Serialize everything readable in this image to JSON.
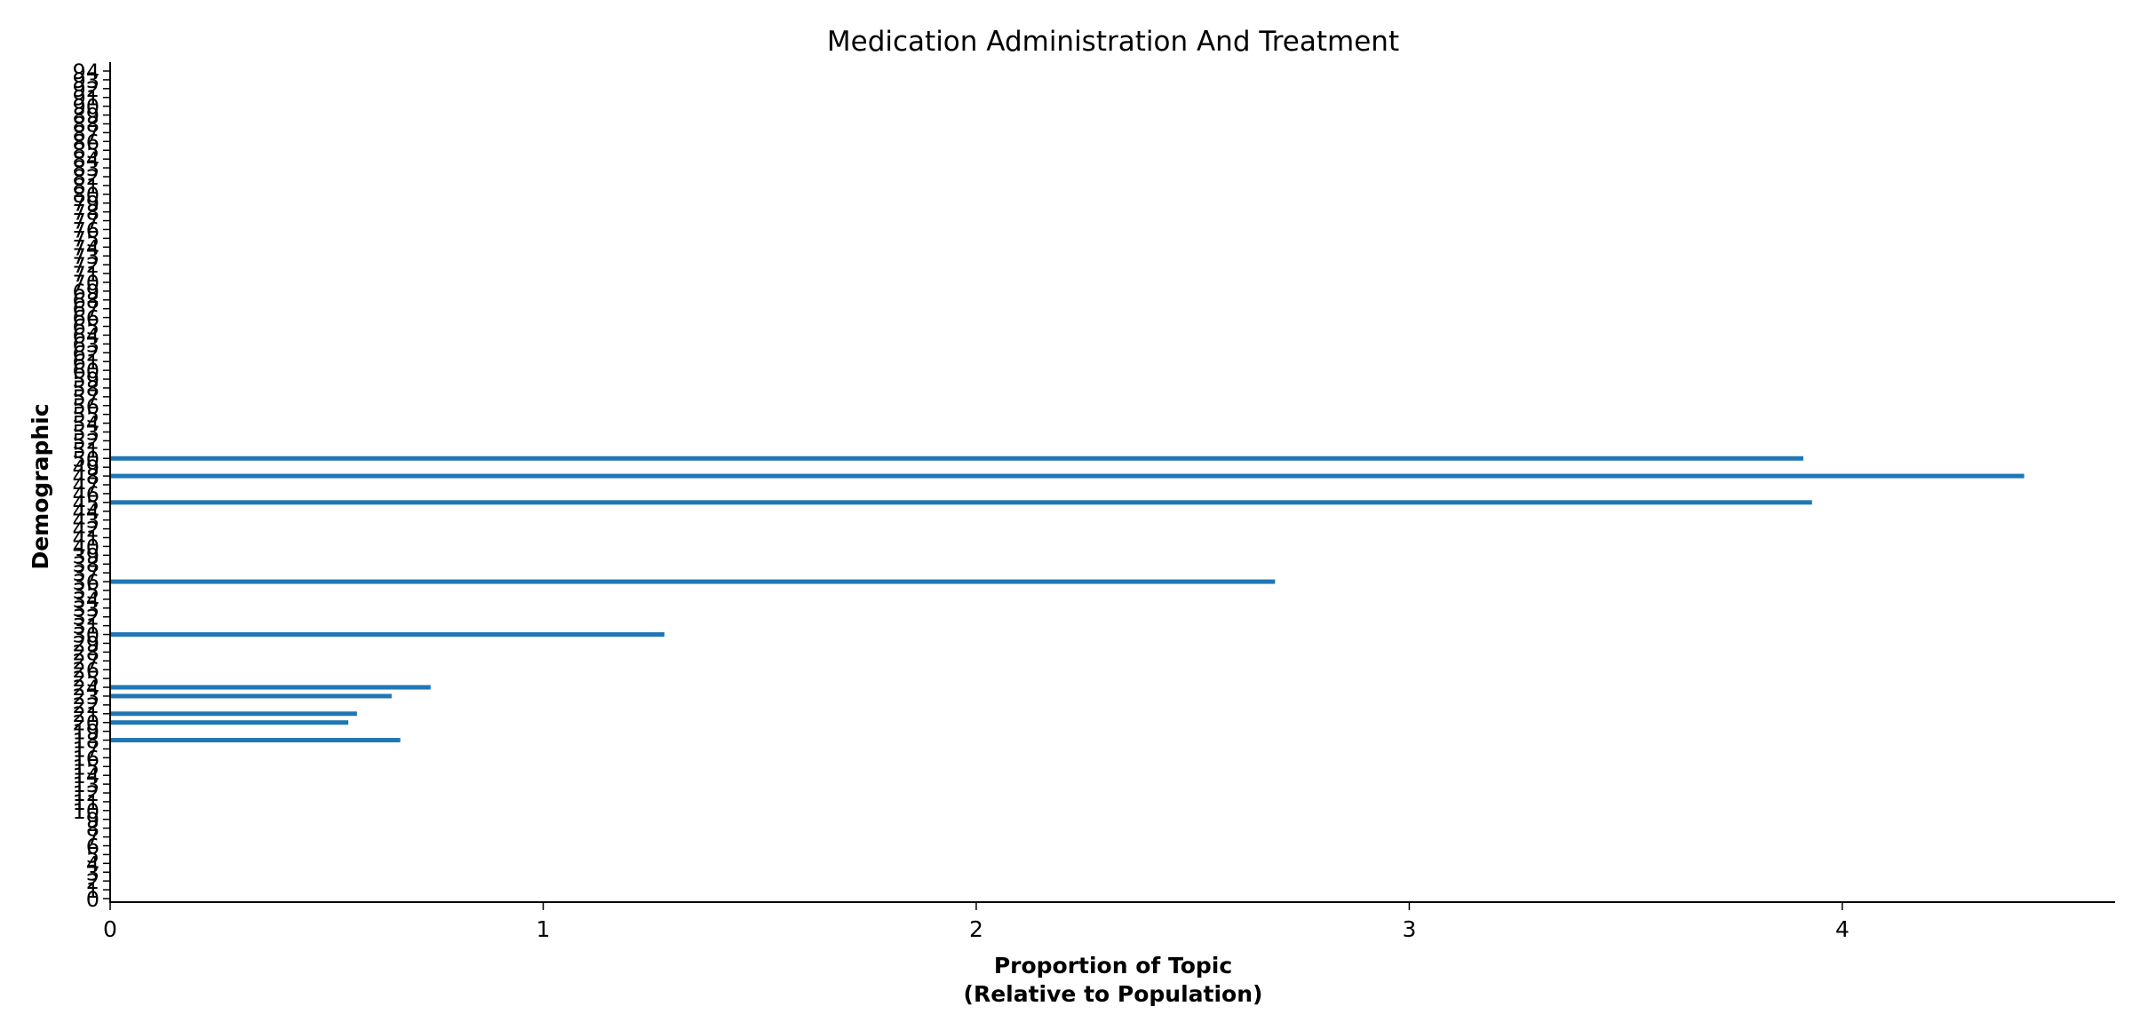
{
  "chart_data": {
    "type": "bar",
    "orientation": "horizontal",
    "title": "Medication Administration And Treatment",
    "xlabel_line1": "Proportion of Topic",
    "xlabel_line2": "(Relative to Population)",
    "ylabel": "Demographic",
    "xlim": [
      0,
      4.63
    ],
    "ylim": [
      0,
      94
    ],
    "xticks": [
      "0",
      "1",
      "2",
      "3",
      "4"
    ],
    "yticks": [
      "0",
      "1",
      "2",
      "3",
      "4",
      "5",
      "6",
      "7",
      "8",
      "9",
      "10",
      "11",
      "12",
      "13",
      "14",
      "15",
      "16",
      "17",
      "18",
      "19",
      "20",
      "21",
      "22",
      "23",
      "24",
      "25",
      "26",
      "27",
      "28",
      "29",
      "30",
      "31",
      "32",
      "33",
      "34",
      "35",
      "36",
      "37",
      "38",
      "39",
      "40",
      "41",
      "42",
      "43",
      "44",
      "45",
      "46",
      "47",
      "48",
      "49",
      "50",
      "51",
      "52",
      "53",
      "54",
      "55",
      "56",
      "57",
      "58",
      "59",
      "60",
      "61",
      "62",
      "63",
      "64",
      "65",
      "66",
      "67",
      "68",
      "69",
      "70",
      "71",
      "72",
      "73",
      "74",
      "75",
      "76",
      "77",
      "78",
      "79",
      "80",
      "81",
      "82",
      "83",
      "84",
      "85",
      "86",
      "87",
      "88",
      "89",
      "90",
      "91",
      "92",
      "93",
      "94"
    ],
    "bars": [
      {
        "category": "18",
        "value": 0.67
      },
      {
        "category": "20",
        "value": 0.55
      },
      {
        "category": "21",
        "value": 0.57
      },
      {
        "category": "23",
        "value": 0.65
      },
      {
        "category": "24",
        "value": 0.74
      },
      {
        "category": "30",
        "value": 1.28
      },
      {
        "category": "36",
        "value": 2.69
      },
      {
        "category": "45",
        "value": 3.93
      },
      {
        "category": "48",
        "value": 4.42
      },
      {
        "category": "50",
        "value": 3.91
      }
    ],
    "color": "#1f77b4",
    "grid": false
  }
}
